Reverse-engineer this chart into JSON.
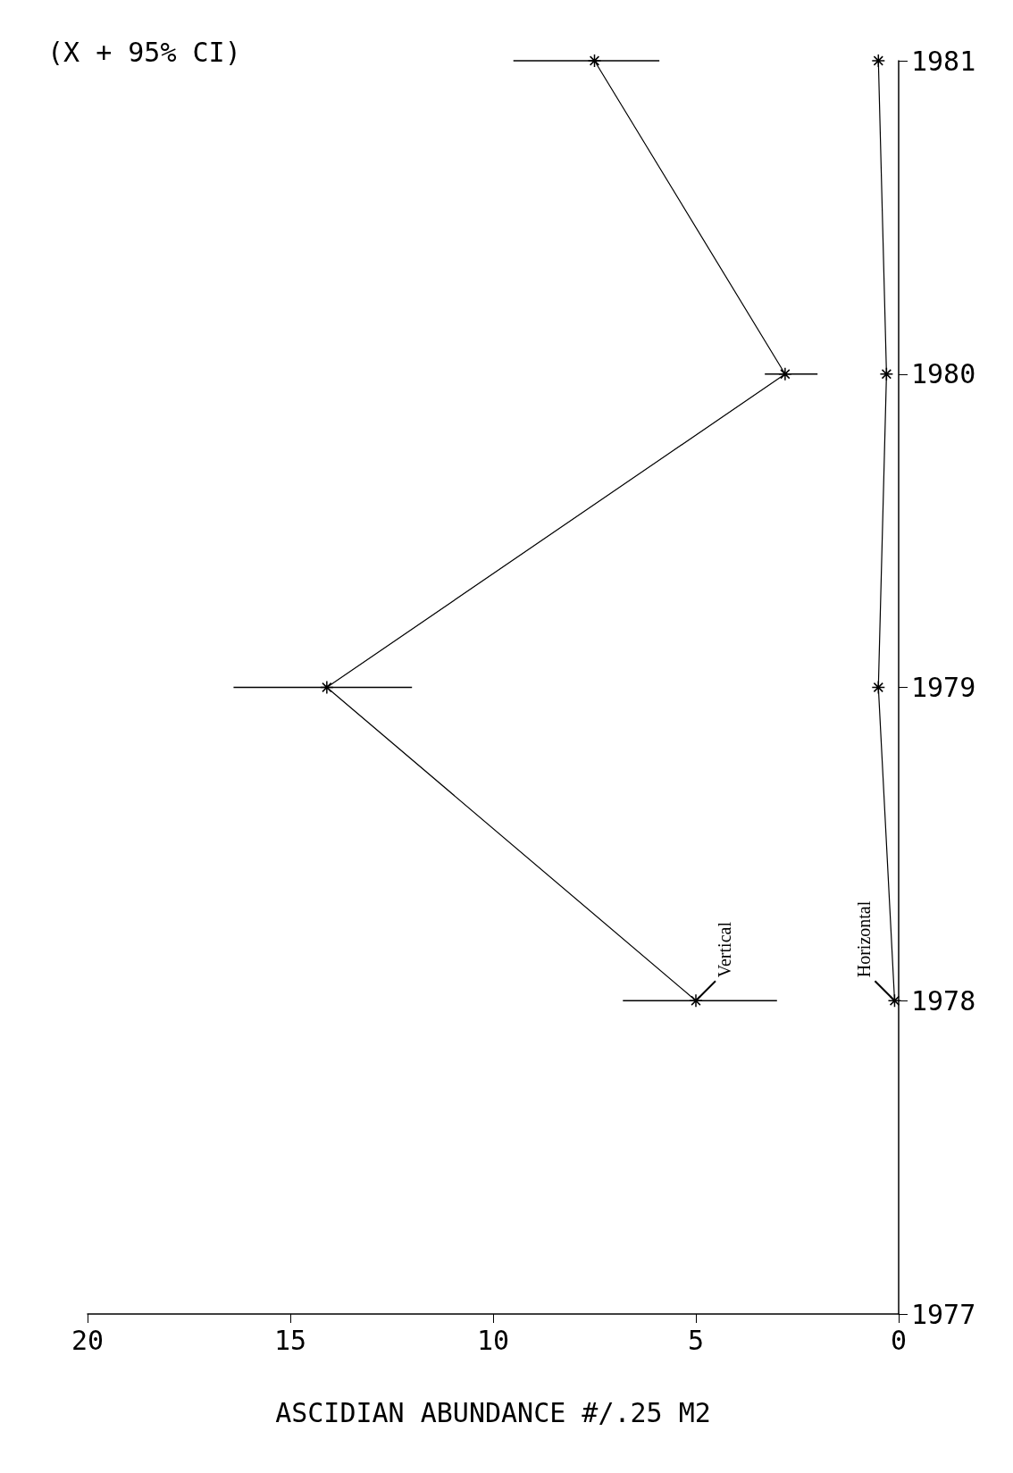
{
  "chart_data": {
    "type": "line",
    "orientation": "horizontal",
    "subtitle": "(X + 95% CI)",
    "xlabel": "ASCIDIAN ABUNDANCE #/.25 M2",
    "x": [
      1978,
      1979,
      1980,
      1981
    ],
    "series": [
      {
        "name": "Vertical",
        "color": "#000000",
        "values": [
          5,
          14.1,
          2.8,
          7.5
        ],
        "errors": [
          [
            3,
            6.8
          ],
          [
            12,
            16.4
          ],
          [
            2,
            3.3
          ],
          [
            5.9,
            9.5
          ]
        ]
      },
      {
        "name": "Horizontal",
        "color": "#000000",
        "values": [
          0.1,
          0.5,
          0.3,
          0.5
        ]
      }
    ],
    "xlim": [
      20,
      0
    ],
    "xticks": [
      0,
      5,
      10,
      15,
      20
    ],
    "ylim": [
      1977,
      1981
    ],
    "yticks": [
      1977,
      1978,
      1979,
      1980,
      1981
    ],
    "grid": false,
    "legend": false,
    "marker": "cross",
    "line_style": "solid"
  }
}
